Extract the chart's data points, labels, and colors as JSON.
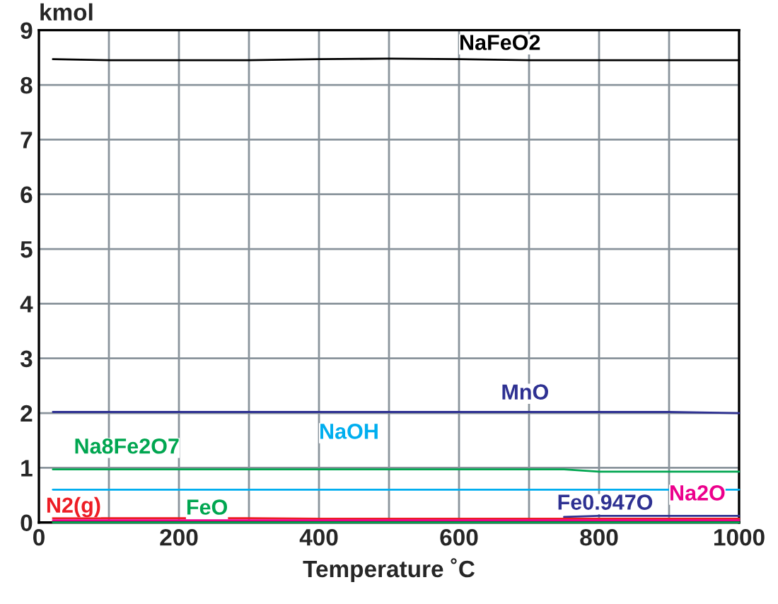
{
  "chart_data": {
    "type": "line",
    "xlabel": "Temperature ˚C",
    "ylabel": "kmol",
    "xlim": [
      0,
      1000
    ],
    "xticks": [
      0,
      200,
      400,
      600,
      800,
      1000
    ],
    "ylim": [
      0,
      9
    ],
    "yticks": [
      0,
      1,
      2,
      3,
      4,
      5,
      6,
      7,
      8,
      9
    ],
    "grid": true,
    "legend": false,
    "marker": "none",
    "line_style": "solid",
    "x": [
      20,
      100,
      200,
      300,
      400,
      500,
      600,
      700,
      750,
      800,
      900,
      1000
    ],
    "series": [
      {
        "name": "NaFeO2",
        "color": "#000000",
        "values": [
          8.47,
          8.45,
          8.45,
          8.45,
          8.47,
          8.48,
          8.47,
          8.45,
          8.45,
          8.45,
          8.45,
          8.45
        ]
      },
      {
        "name": "MnO",
        "color": "#2e3192",
        "values": [
          2.02,
          2.02,
          2.02,
          2.02,
          2.02,
          2.02,
          2.02,
          2.02,
          2.02,
          2.02,
          2.02,
          2.0
        ]
      },
      {
        "name": "Na8Fe2O7",
        "color": "#00a650",
        "values": [
          0.97,
          0.97,
          0.97,
          0.97,
          0.97,
          0.97,
          0.97,
          0.97,
          0.97,
          0.93,
          0.93,
          0.93
        ]
      },
      {
        "name": "NaOH",
        "color": "#00aeef",
        "values": [
          0.6,
          0.6,
          0.6,
          0.6,
          0.6,
          0.6,
          0.6,
          0.6,
          0.6,
          0.6,
          0.6,
          0.6
        ]
      },
      {
        "name": "Fe0.947O",
        "color": "#2e3192",
        "values": [
          null,
          null,
          null,
          null,
          null,
          null,
          null,
          null,
          0.1,
          0.12,
          0.12,
          0.12
        ]
      },
      {
        "name": "N2(g)",
        "color": "#ed1c24",
        "values": [
          0.08,
          0.08,
          0.08,
          0.08,
          0.07,
          0.07,
          0.07,
          0.07,
          0.07,
          0.07,
          0.07,
          0.07
        ]
      },
      {
        "name": "FeO",
        "color": "#00a650",
        "values": [
          0.0,
          0.0,
          0.0,
          0.0,
          0.0,
          0.0,
          0.0,
          0.0,
          0.0,
          0.0,
          0.0,
          0.0
        ]
      },
      {
        "name": "Na2O",
        "color": "#ec008c",
        "values": [
          0.04,
          0.04,
          0.04,
          0.04,
          0.04,
          0.04,
          0.04,
          0.04,
          0.04,
          0.04,
          0.04,
          0.04
        ]
      }
    ]
  }
}
